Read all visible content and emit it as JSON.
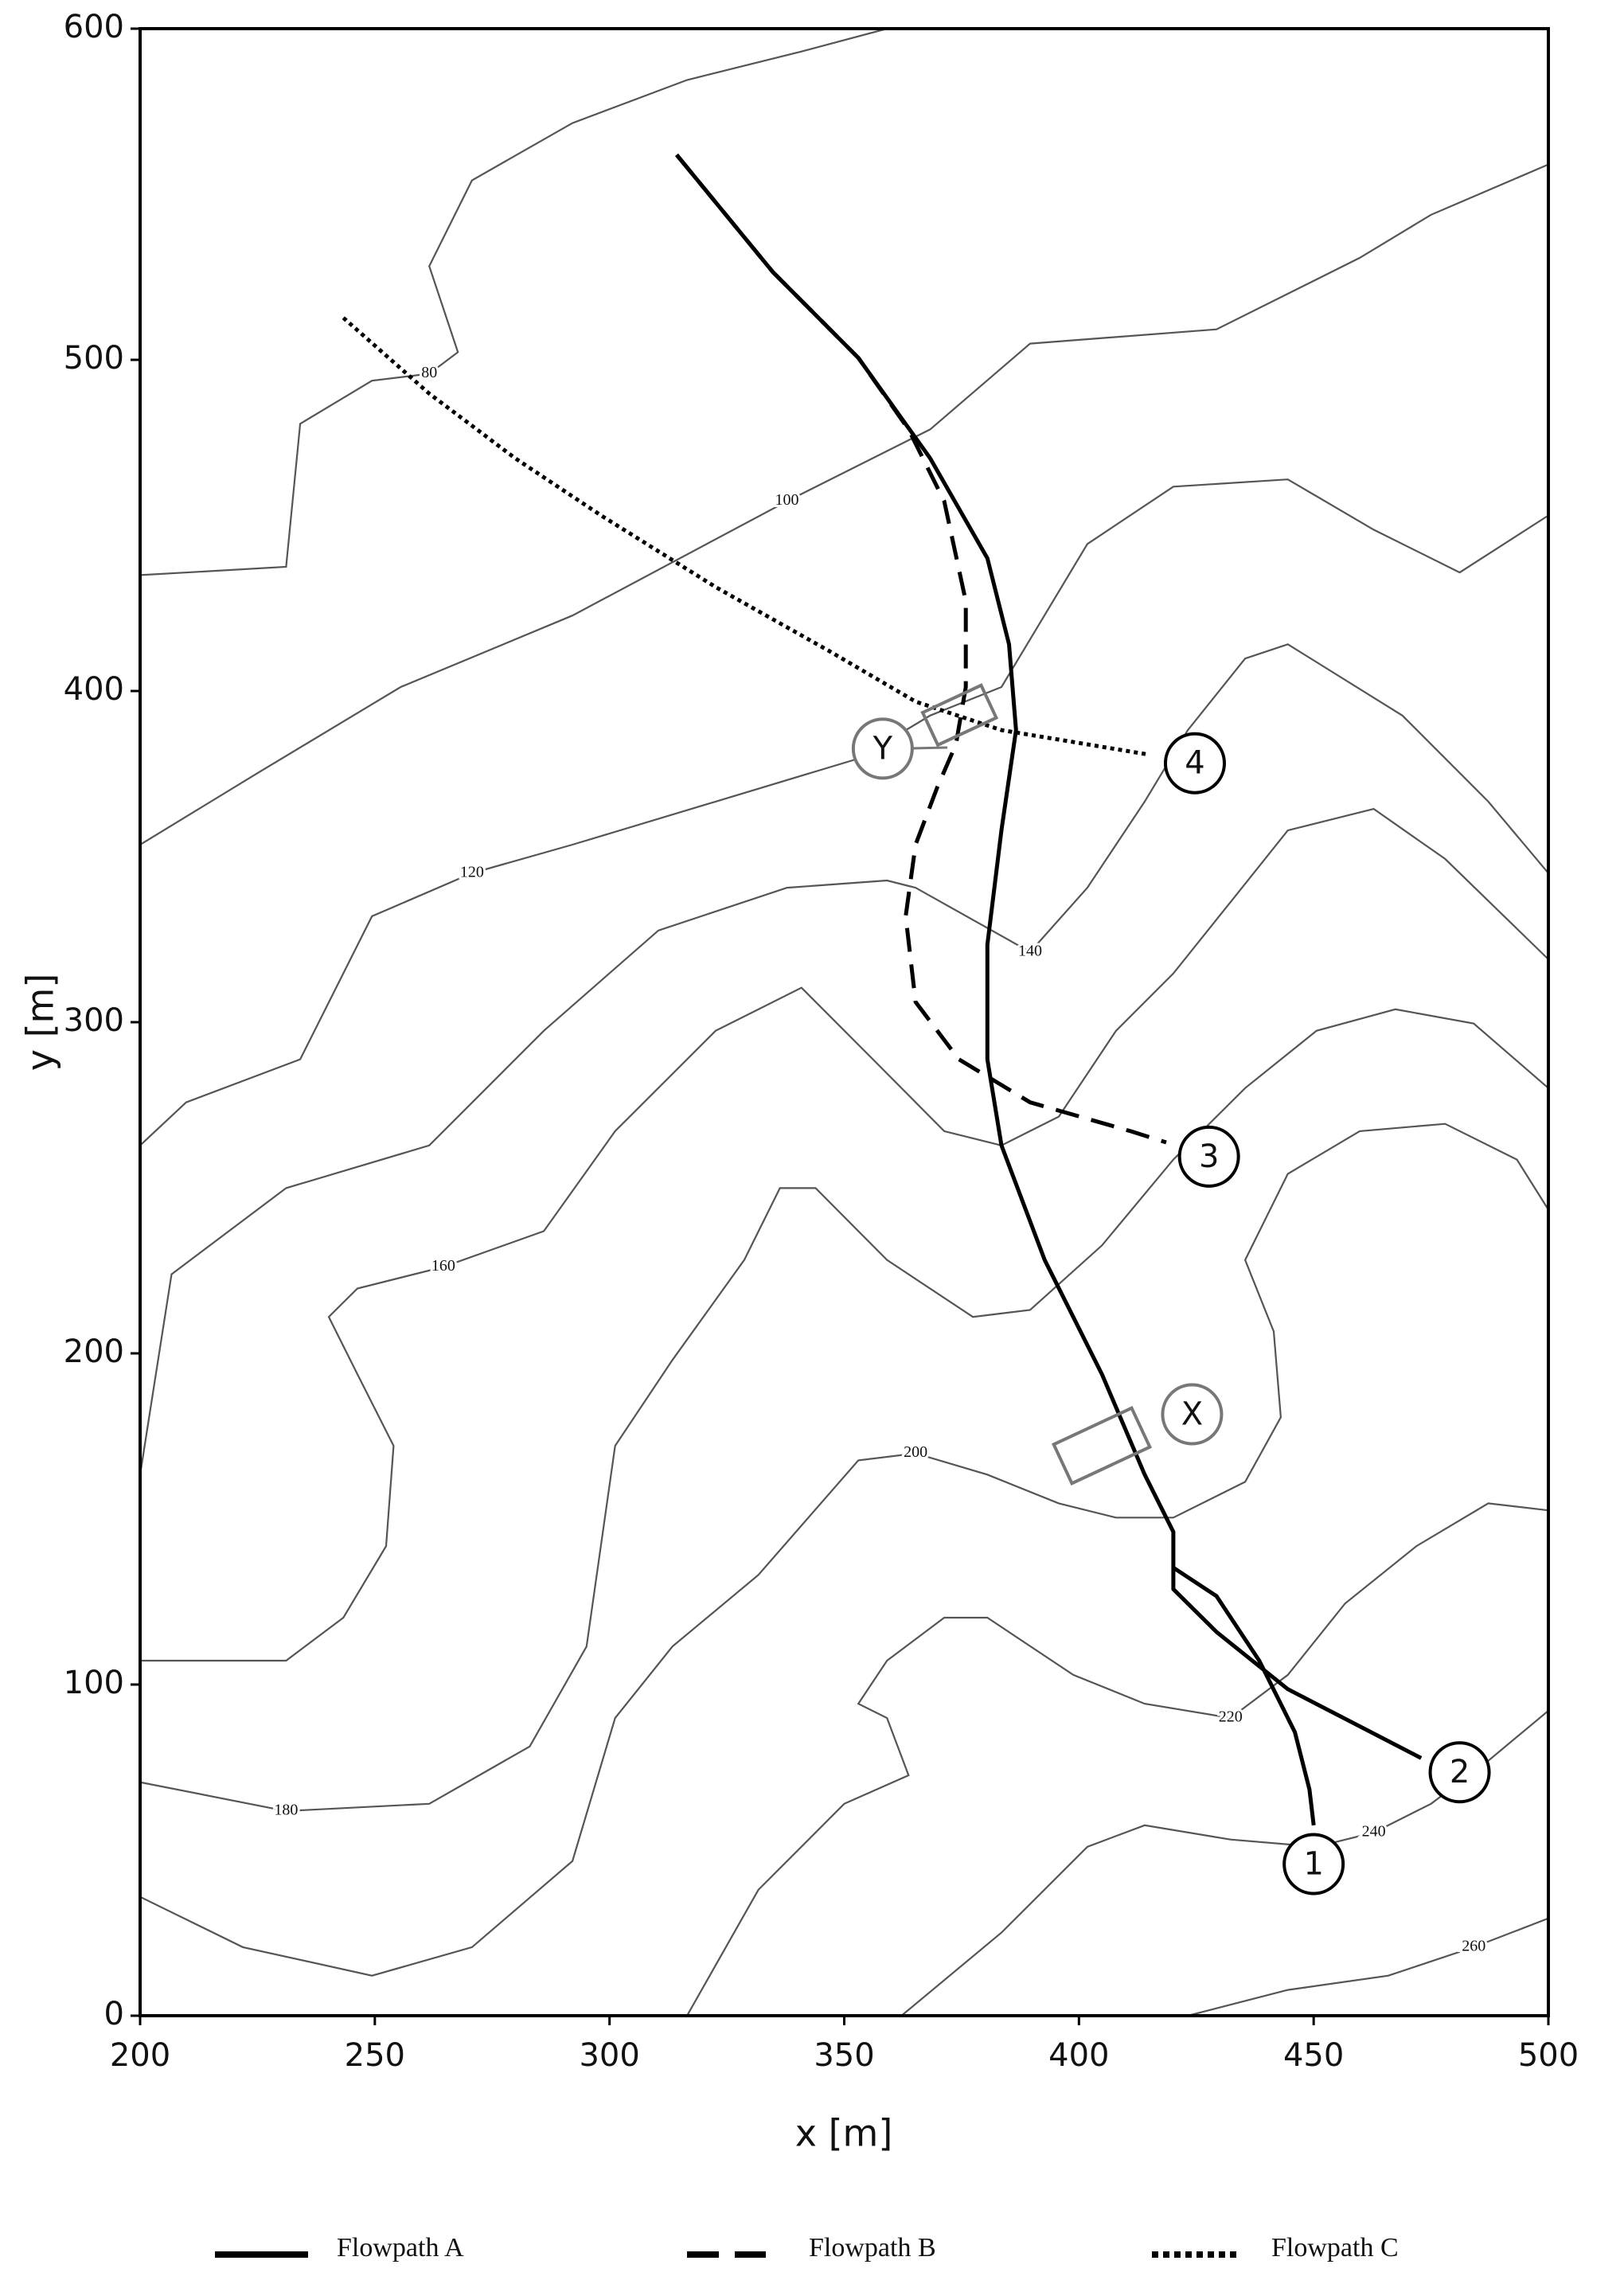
{
  "chart_data": {
    "type": "line",
    "x_label": "x [m]",
    "y_label": "y [m]",
    "xlim": [
      200,
      500
    ],
    "ylim": [
      0,
      600
    ],
    "xticks": [
      200,
      250,
      300,
      350,
      400,
      450,
      500
    ],
    "yticks": [
      0,
      100,
      200,
      300,
      400,
      500,
      600
    ],
    "series": [
      {
        "name": "Flowpath A",
        "color": "#000000",
        "style": "solid",
        "x": [
          314.3,
          334.8,
          353.0,
          368.3,
          380.5,
          385.1,
          386.6,
          383.5,
          380.5,
          380.5,
          383.5,
          392.7,
          404.9,
          414.0,
          420.1,
          420.1,
          429.3,
          438.4,
          446.0,
          449.1,
          450.0,
          null,
          420.1,
          420.1,
          429.3,
          444.5,
          472.9
        ],
        "y": [
          561.9,
          526.5,
          500.6,
          470.3,
          440.1,
          414.1,
          388.2,
          358.0,
          323.4,
          288.8,
          262.8,
          228.2,
          193.7,
          163.4,
          146.1,
          135.3,
          126.7,
          107.2,
          85.6,
          68.3,
          57.5,
          null,
          135.3,
          128.8,
          115.9,
          98.6,
          77.8
        ]
      },
      {
        "name": "Flowpath B",
        "color": "#000000",
        "style": "dashed",
        "x": [
          314.3,
          334.8,
          353.0,
          363.7,
          371.3,
          375.9,
          375.9,
          373.8,
          369.8,
          365.2,
          363.1,
          365.2,
          374.4,
          389.6,
          411.0,
          418.6
        ],
        "y": [
          561.9,
          526.5,
          500.6,
          479.0,
          457.3,
          427.1,
          401.2,
          383.9,
          370.9,
          353.6,
          332.0,
          306.1,
          288.8,
          275.8,
          267.1,
          263.7
        ]
      },
      {
        "name": "Flowpath C",
        "color": "#000000",
        "style": "dotted",
        "x": [
          243.3,
          261.6,
          279.9,
          298.2,
          322.6,
          346.9,
          365.2,
          383.5,
          401.8,
          414.9
        ],
        "y": [
          512.7,
          489.8,
          470.3,
          453.0,
          431.4,
          412.0,
          396.8,
          388.2,
          383.9,
          380.8
        ]
      }
    ],
    "contour_color": "#555555",
    "contours": [
      {
        "level": 80,
        "x": [
          200,
          231.1,
          234.1,
          249.4,
          261.6,
          267.7,
          261.6,
          270.7,
          292.1,
          316.5,
          340.9,
          359.1
        ],
        "y": [
          435,
          437.5,
          480.7,
          493.7,
          495.8,
          502.3,
          528.3,
          554.2,
          571.5,
          584.5,
          593.1,
          600
        ]
      },
      {
        "level": 100,
        "x": [
          200,
          225,
          255.5,
          292.1,
          337.8,
          368.3,
          389.6,
          429.3,
          459.8,
          475,
          500
        ],
        "y": [
          353.6,
          375.2,
          401.2,
          422.8,
          457.3,
          479,
          504.9,
          509.2,
          530.8,
          543.8,
          559
        ]
      },
      {
        "level": 120,
        "x": [
          200,
          209.8,
          234.1,
          249.4,
          270.7,
          292.1,
          322.6,
          353,
          368.3,
          383.5,
          401.8,
          420.1,
          444.5,
          462.8,
          481.1,
          500
        ],
        "y": [
          262.8,
          275.8,
          288.8,
          332,
          345,
          353.6,
          366.6,
          379.6,
          392.6,
          401.2,
          444.4,
          461.7,
          463.9,
          448.7,
          435.8,
          453
        ]
      },
      {
        "level": 140,
        "x": [
          200,
          206.7,
          231.1,
          261.6,
          286,
          310.4,
          337.8,
          359.1,
          365.2,
          389.6,
          401.8,
          414,
          423.2,
          435.4,
          444.5,
          468.9,
          487.2,
          500
        ],
        "y": [
          163.4,
          223.9,
          249.9,
          262.8,
          297.4,
          327.7,
          340.6,
          342.8,
          340.6,
          321.2,
          340.6,
          366.6,
          388.2,
          409.8,
          414.1,
          392.6,
          366.6,
          345
        ]
      },
      {
        "level": 160,
        "x": [
          200,
          231.1,
          243.3,
          252.4,
          254,
          246.3,
          240.2,
          246.3,
          264.6,
          286,
          301.2,
          322.6,
          340.9,
          356.1,
          371.3,
          383.5,
          395.7,
          407.9,
          420.1,
          432.3,
          444.5,
          462.8,
          478,
          500
        ],
        "y": [
          107.2,
          107.2,
          120.2,
          141.8,
          172.1,
          193.7,
          211,
          219.6,
          226.1,
          236.9,
          267.1,
          297.4,
          310.4,
          288.8,
          267.1,
          262.8,
          271.5,
          297.4,
          314.7,
          336.3,
          357.9,
          364.4,
          349.3,
          319
        ]
      },
      {
        "level": 180,
        "x": [
          200,
          231.1,
          261.6,
          283,
          295.1,
          301.2,
          313.4,
          328.7,
          336.3,
          343.9,
          359.1,
          377.4,
          389.6,
          404.9,
          420.1,
          435.4,
          450.6,
          467.4,
          484.1,
          500
        ],
        "y": [
          70.5,
          61.8,
          64,
          81.3,
          111.5,
          172.1,
          198,
          228.2,
          249.9,
          249.9,
          228.2,
          211,
          213.1,
          232.6,
          258.5,
          280.1,
          297.4,
          303.9,
          299.6,
          280.1
        ]
      },
      {
        "level": 200,
        "x": [
          200,
          221.9,
          249.4,
          270.7,
          292.1,
          301.2,
          313.4,
          331.7,
          353,
          365.2,
          380.5,
          395.7,
          407.9,
          420.1,
          435.4,
          443,
          441.5,
          435.4,
          444.5,
          459.8,
          478,
          493.3,
          500
        ],
        "y": [
          35.9,
          20.7,
          12.1,
          20.7,
          46.7,
          89.9,
          111.5,
          133.1,
          167.7,
          169.8,
          163.4,
          154.7,
          150.4,
          150.4,
          161.2,
          180.7,
          206.6,
          228.2,
          254.2,
          267.1,
          269.3,
          258.5,
          243.4
        ]
      },
      {
        "level": 220,
        "x": [
          316.5,
          331.7,
          350,
          363.7,
          359.1,
          353,
          359.1,
          371.3,
          380.5,
          398.8,
          414,
          432.3,
          444.5,
          456.7,
          471.9,
          487.2,
          500
        ],
        "y": [
          0,
          38,
          64,
          72.6,
          89.9,
          94.2,
          107.2,
          120.2,
          120.2,
          102.9,
          94.2,
          89.9,
          102.9,
          124.5,
          141.8,
          154.7,
          152.6
        ]
      },
      {
        "level": 240,
        "x": [
          362.2,
          383.5,
          401.8,
          414,
          432.3,
          450.6,
          462.8,
          475,
          487.2,
          500
        ],
        "y": [
          0,
          25.1,
          51,
          57.5,
          53.2,
          51,
          55.3,
          64,
          77,
          92.1
        ]
      },
      {
        "level": 260,
        "x": [
          423.2,
          444.5,
          465.9,
          484.1,
          500
        ],
        "y": [
          0,
          7.8,
          12.1,
          20.7,
          29.4
        ]
      }
    ],
    "annotations": [
      {
        "text": "1",
        "x": 450,
        "y": 45.8,
        "color": "#000000"
      },
      {
        "text": "2",
        "x": 481.1,
        "y": 73.5,
        "color": "#000000"
      },
      {
        "text": "3",
        "x": 427.7,
        "y": 259.4,
        "color": "#000000"
      },
      {
        "text": "4",
        "x": 424.7,
        "y": 378.2,
        "color": "#000000"
      },
      {
        "text": "X",
        "x": 424.1,
        "y": 181.6,
        "color": "#777777"
      },
      {
        "text": "Y",
        "x": 358.2,
        "y": 382.6,
        "color": "#777777"
      }
    ]
  }
}
